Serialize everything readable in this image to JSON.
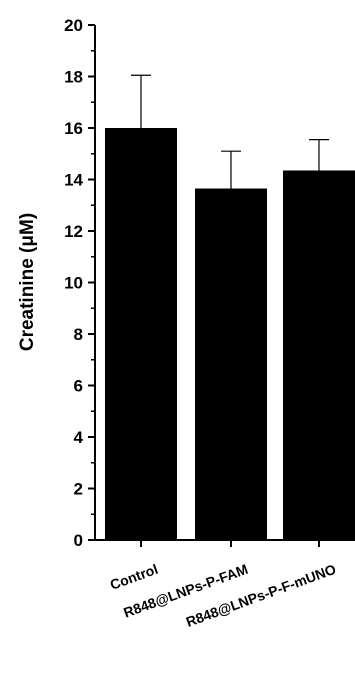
{
  "chart_data": {
    "type": "bar",
    "categories": [
      "Control",
      "R848@LNPs-P-FAM",
      "R848@LNPs-P-F-mUNO"
    ],
    "values": [
      16.0,
      13.65,
      14.35
    ],
    "error_plus": [
      2.05,
      1.45,
      1.2
    ],
    "ylabel": "Creatinine (μM)",
    "ylim": [
      0,
      20
    ],
    "yticks": [
      "0",
      "2",
      "4",
      "6",
      "8",
      "10",
      "12",
      "14",
      "16",
      "18",
      "20"
    ],
    "grid": false,
    "bar_color": "#000000"
  }
}
